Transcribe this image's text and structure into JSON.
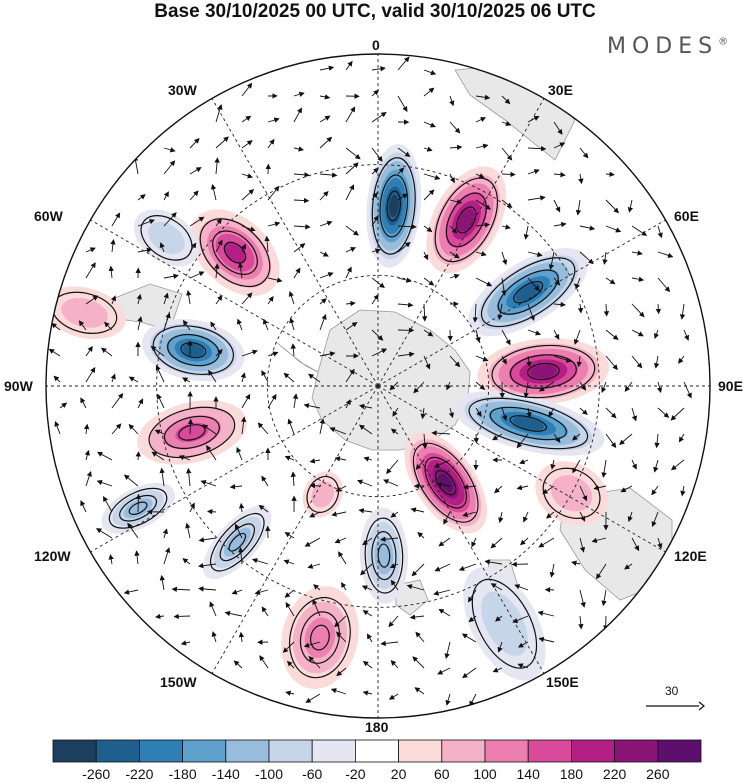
{
  "title": "Base 30/10/2025 00 UTC, valid 30/10/2025 06 UTC",
  "brand": "MODES",
  "brand_mark": "®",
  "longitude_labels": {
    "n0": "0",
    "n30e": "30E",
    "n60e": "60E",
    "n90e": "90E",
    "n120e": "120E",
    "n150e": "150E",
    "n180": "180",
    "n150w": "150W",
    "n120w": "120W",
    "n90w": "90W",
    "n60w": "60W",
    "n30w": "30W"
  },
  "vector_scale": {
    "value": "30",
    "icon": "arrow-right-icon"
  },
  "colorbar": {
    "ticks": [
      "-260",
      "-220",
      "-180",
      "-140",
      "-100",
      "-60",
      "-20",
      "20",
      "60",
      "100",
      "140",
      "180",
      "220",
      "260"
    ],
    "colors": [
      "#1d3f5e",
      "#1f5f8e",
      "#2f7fb4",
      "#5ea1cc",
      "#98bcdb",
      "#c7d5e9",
      "#e6e6f2",
      "#ffffff",
      "#fbdada",
      "#f5b1c8",
      "#ec7fb0",
      "#d94a9a",
      "#b41f86",
      "#8b1478",
      "#5c0f6c"
    ]
  },
  "anomalies": [
    {
      "id": "blue-0",
      "value": -260,
      "lon": 5,
      "colat": 49,
      "major": 62,
      "minor": 27
    },
    {
      "id": "pink-25e",
      "value": 250,
      "lon": 28,
      "colat": 51,
      "major": 58,
      "minor": 33
    },
    {
      "id": "blue-55e",
      "value": -230,
      "lon": 58,
      "colat": 48,
      "major": 68,
      "minor": 30
    },
    {
      "id": "pink-85e",
      "value": 240,
      "lon": 85,
      "colat": 45,
      "major": 66,
      "minor": 33
    },
    {
      "id": "blue-105e",
      "value": -240,
      "lon": 104,
      "colat": 42,
      "major": 78,
      "minor": 27
    },
    {
      "id": "pink-140e",
      "value": 260,
      "lon": 145,
      "colat": 32,
      "major": 58,
      "minor": 30
    },
    {
      "id": "pink-120e-outer",
      "value": 80,
      "lon": 119,
      "colat": 60,
      "major": 38,
      "minor": 30
    },
    {
      "id": "blue-170e",
      "value": -120,
      "lon": 178,
      "colat": 46,
      "major": 48,
      "minor": 24
    },
    {
      "id": "blue-150e-outer",
      "value": -80,
      "lon": 152,
      "colat": 73,
      "major": 62,
      "minor": 33
    },
    {
      "id": "pink-160w",
      "value": 120,
      "lon": -167,
      "colat": 70,
      "major": 52,
      "minor": 38
    },
    {
      "id": "pink-155w-inner",
      "value": 60,
      "lon": -153,
      "colat": 33,
      "major": 24,
      "minor": 19
    },
    {
      "id": "blue-135w",
      "value": -120,
      "lon": -138,
      "colat": 57,
      "major": 46,
      "minor": 20
    },
    {
      "id": "blue-115w",
      "value": -110,
      "lon": -117,
      "colat": 73,
      "major": 40,
      "minor": 20
    },
    {
      "id": "pink-105w",
      "value": 150,
      "lon": -104,
      "colat": 52,
      "major": 56,
      "minor": 30
    },
    {
      "id": "blue-80w",
      "value": -250,
      "lon": -79,
      "colat": 51,
      "major": 52,
      "minor": 30
    },
    {
      "id": "pink-45w",
      "value": 200,
      "lon": -47,
      "colat": 53,
      "major": 52,
      "minor": 34
    },
    {
      "id": "blue-55w",
      "value": -60,
      "lon": -55,
      "colat": 70,
      "major": 36,
      "minor": 24
    },
    {
      "id": "pink-80w-outer",
      "value": 60,
      "lon": -76,
      "colat": 82,
      "major": 42,
      "minor": 25
    }
  ]
}
